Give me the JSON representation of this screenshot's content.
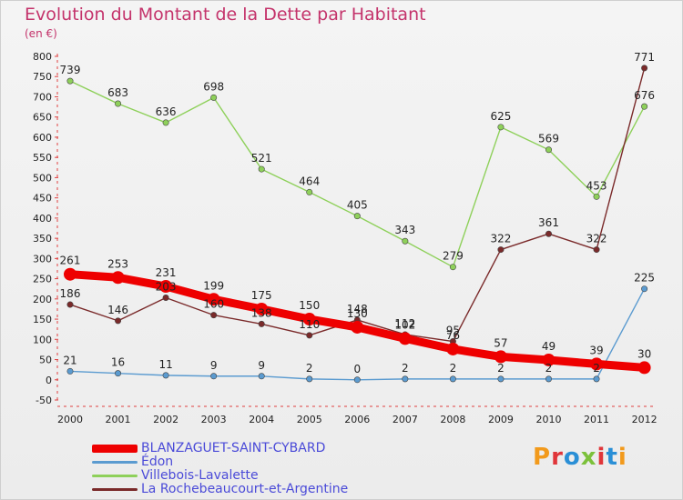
{
  "title": "Evolution du Montant de la Dette par Habitant",
  "subtitle": "(en €)",
  "logo": {
    "text": "Proxiti",
    "colors": [
      "#f29a1c",
      "#e0363a",
      "#2a8fd6",
      "#7cc13b",
      "#e0363a",
      "#2a8fd6",
      "#f29a1c"
    ]
  },
  "chart_data": {
    "type": "line",
    "title": "Evolution du Montant de la Dette par Habitant",
    "ylabel": "(en €)",
    "xlabel": "",
    "ylim": [
      -50,
      800
    ],
    "yticks": [
      -50,
      0,
      50,
      100,
      150,
      200,
      250,
      300,
      350,
      400,
      450,
      500,
      550,
      600,
      650,
      700,
      750,
      800
    ],
    "grid": false,
    "legend_position": "bottom-left",
    "categories": [
      "2000",
      "2001",
      "2002",
      "2003",
      "2004",
      "2005",
      "2006",
      "2007",
      "2008",
      "2009",
      "2010",
      "2011",
      "2012"
    ],
    "series": [
      {
        "name": "BLANZAGUET-SAINT-CYBARD",
        "color": "#ee0000",
        "values": [
          261,
          253,
          231,
          199,
          175,
          150,
          130,
          102,
          76,
          57,
          49,
          39,
          30
        ],
        "labels": [
          "261",
          "253",
          "231",
          "199",
          "175",
          "150",
          "130",
          "102",
          "76",
          "57",
          "49",
          "39",
          "30"
        ]
      },
      {
        "name": "Édon",
        "color": "#5b9bd0",
        "values": [
          21,
          16,
          11,
          9,
          9,
          2,
          0,
          2,
          2,
          2,
          2,
          2,
          225
        ],
        "labels": [
          "21",
          "16",
          "11",
          "9",
          "9",
          "2",
          "0",
          "2",
          "2",
          "2",
          "2",
          "2",
          "225"
        ]
      },
      {
        "name": "Villebois-Lavalette",
        "color": "#8ed05a",
        "values": [
          739,
          683,
          636,
          698,
          521,
          464,
          405,
          343,
          279,
          625,
          569,
          453,
          676
        ],
        "labels": [
          "739",
          "683",
          "636",
          "698",
          "521",
          "464",
          "405",
          "343",
          "279",
          "625",
          "569",
          "453",
          "676"
        ]
      },
      {
        "name": "La Rochebeaucourt-et-Argentine",
        "color": "#7a2a2a",
        "values": [
          186,
          146,
          203,
          160,
          138,
          110,
          148,
          112,
          95,
          322,
          361,
          322,
          771
        ],
        "labels": [
          "186",
          "146",
          "203",
          "160",
          "138",
          "110",
          "148",
          "112",
          "95",
          "322",
          "361",
          "322",
          "771"
        ]
      }
    ]
  }
}
